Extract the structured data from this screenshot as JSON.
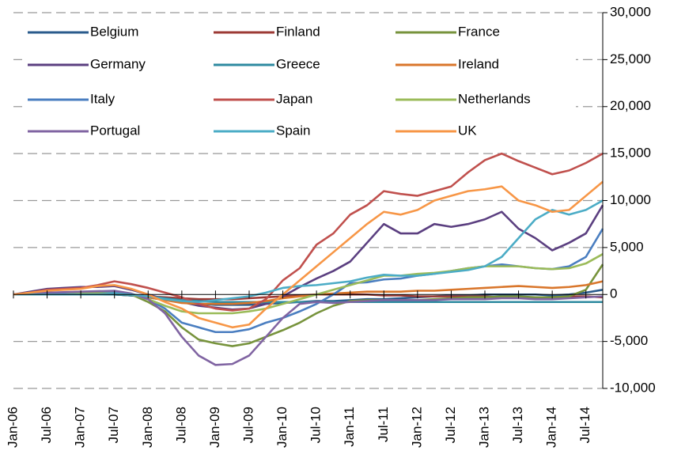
{
  "chart_data": {
    "type": "line",
    "categories": [
      "Jan-06",
      null,
      "Jul-06",
      null,
      "Jan-07",
      null,
      "Jul-07",
      null,
      "Jan-08",
      null,
      "Jul-08",
      null,
      "Jan-09",
      null,
      "Jul-09",
      null,
      "Jan-10",
      null,
      "Jul-10",
      null,
      "Jan-11",
      null,
      "Jul-11",
      null,
      "Jan-12",
      null,
      "Jul-12",
      null,
      "Jan-13",
      null,
      "Jul-13",
      null,
      "Jan-14",
      null,
      "Jul-14",
      null
    ],
    "ylim": [
      -10000,
      30000
    ],
    "yticks": [
      {
        "value": -10000,
        "label": "-10,000"
      },
      {
        "value": -5000,
        "label": "-5,000"
      },
      0,
      {
        "value": 5000,
        "label": "5,000"
      },
      {
        "value": 10000,
        "label": "10,000"
      },
      {
        "value": 15000,
        "label": "15,000"
      },
      {
        "value": 20000,
        "label": "20,000"
      },
      {
        "value": 25000,
        "label": "25,000"
      },
      {
        "value": 30000,
        "label": "30,000"
      }
    ],
    "grid": true,
    "series": [
      {
        "name": "Belgium",
        "color": "#2a5b8c",
        "values": [
          0,
          0,
          0,
          0,
          0,
          0,
          0,
          -100,
          -300,
          -600,
          -800,
          -1000,
          -1100,
          -1100,
          -1100,
          -1000,
          -900,
          -800,
          -700,
          -700,
          -600,
          -500,
          -500,
          -400,
          -300,
          -200,
          -100,
          -100,
          0,
          0,
          0,
          0,
          -100,
          0,
          200,
          500
        ]
      },
      {
        "name": "Finland",
        "color": "#9c3a35",
        "values": [
          0,
          0,
          0,
          0,
          0,
          0,
          0,
          -100,
          -200,
          -300,
          -400,
          -500,
          -500,
          -500,
          -400,
          -300,
          -200,
          -100,
          0,
          0,
          0,
          0,
          -100,
          -100,
          -200,
          -200,
          -200,
          -200,
          -200,
          -300,
          -300,
          -300,
          -300,
          -200,
          -200,
          -300
        ]
      },
      {
        "name": "France",
        "color": "#77933c",
        "values": [
          0,
          100,
          200,
          200,
          300,
          300,
          300,
          0,
          -800,
          -1800,
          -3500,
          -4800,
          -5200,
          -5500,
          -5200,
          -4500,
          -3800,
          -3000,
          -2000,
          -1200,
          -700,
          -600,
          -600,
          -600,
          -600,
          -500,
          -400,
          -300,
          -300,
          -200,
          -200,
          -300,
          -300,
          -200,
          500,
          3200
        ]
      },
      {
        "name": "Germany",
        "color": "#5b3f80",
        "values": [
          0,
          300,
          600,
          700,
          800,
          800,
          900,
          500,
          0,
          -500,
          -800,
          -1200,
          -1400,
          -1600,
          -1500,
          -1000,
          -200,
          800,
          1700,
          2500,
          3500,
          5500,
          7500,
          6500,
          6500,
          7500,
          7200,
          7500,
          8000,
          8800,
          7000,
          6000,
          4700,
          5500,
          6500,
          9500
        ]
      },
      {
        "name": "Greece",
        "color": "#2e8aa0",
        "values": [
          0,
          0,
          0,
          0,
          0,
          0,
          0,
          -100,
          -200,
          -400,
          -600,
          -700,
          -800,
          -800,
          -800,
          -800,
          -800,
          -800,
          -800,
          -800,
          -800,
          -800,
          -800,
          -800,
          -800,
          -800,
          -800,
          -800,
          -800,
          -800,
          -800,
          -800,
          -800,
          -800,
          -800,
          -800
        ]
      },
      {
        "name": "Ireland",
        "color": "#d9762b",
        "values": [
          0,
          0,
          50,
          100,
          100,
          100,
          100,
          0,
          -300,
          -600,
          -900,
          -1000,
          -1000,
          -1000,
          -900,
          -700,
          -400,
          -200,
          0,
          100,
          200,
          300,
          300,
          300,
          400,
          400,
          500,
          600,
          700,
          800,
          900,
          800,
          700,
          800,
          1000,
          1400
        ]
      },
      {
        "name": "Italy",
        "color": "#4a7ec0",
        "values": [
          0,
          0,
          100,
          100,
          100,
          100,
          200,
          0,
          -500,
          -1500,
          -3000,
          -3500,
          -4000,
          -4000,
          -3700,
          -3000,
          -2500,
          -1800,
          -1000,
          0,
          1200,
          1300,
          1600,
          1700,
          2000,
          2200,
          2500,
          2800,
          3000,
          3200,
          3000,
          2800,
          2700,
          3000,
          4000,
          7000
        ]
      },
      {
        "name": "Japan",
        "color": "#c0504d",
        "values": [
          0,
          200,
          500,
          600,
          700,
          1000,
          1400,
          1100,
          700,
          200,
          -300,
          -1000,
          -1500,
          -1700,
          -1500,
          -500,
          1500,
          2800,
          5300,
          6500,
          8500,
          9500,
          11000,
          10700,
          10500,
          11000,
          11500,
          13000,
          14300,
          15000,
          14200,
          13500,
          12800,
          13200,
          14000,
          15000
        ]
      },
      {
        "name": "Netherlands",
        "color": "#9bbb59",
        "values": [
          0,
          0,
          0,
          0,
          100,
          100,
          100,
          0,
          -500,
          -1200,
          -1800,
          -2000,
          -2000,
          -2000,
          -1800,
          -1500,
          -1000,
          -500,
          0,
          500,
          1000,
          1500,
          2000,
          2000,
          2200,
          2300,
          2500,
          2800,
          3000,
          3000,
          3000,
          2800,
          2700,
          2800,
          3300,
          4300
        ]
      },
      {
        "name": "Portugal",
        "color": "#8064a2",
        "values": [
          0,
          100,
          200,
          250,
          300,
          350,
          400,
          100,
          -500,
          -2000,
          -4500,
          -6500,
          -7500,
          -7400,
          -6500,
          -4500,
          -2500,
          -1000,
          -800,
          -900,
          -800,
          -700,
          -600,
          -600,
          -600,
          -600,
          -500,
          -500,
          -500,
          -400,
          -400,
          -500,
          -500,
          -400,
          -300,
          -200
        ]
      },
      {
        "name": "Spain",
        "color": "#4bacc6",
        "values": [
          0,
          0,
          0,
          0,
          0,
          0,
          100,
          0,
          -200,
          -500,
          -700,
          -800,
          -600,
          -400,
          -200,
          200,
          700,
          900,
          1000,
          1200,
          1400,
          1800,
          2100,
          2000,
          2000,
          2200,
          2400,
          2600,
          3000,
          4000,
          6000,
          8000,
          9000,
          8500,
          9000,
          10000
        ]
      },
      {
        "name": "UK",
        "color": "#f79646",
        "values": [
          0,
          200,
          400,
          500,
          600,
          900,
          1000,
          600,
          0,
          -800,
          -1500,
          -2500,
          -3000,
          -3500,
          -3200,
          -1500,
          0,
          1500,
          3000,
          4500,
          6000,
          7500,
          8800,
          8500,
          9000,
          10000,
          10500,
          11000,
          11200,
          11500,
          10000,
          9500,
          8800,
          9000,
          10500,
          12000
        ]
      }
    ]
  }
}
